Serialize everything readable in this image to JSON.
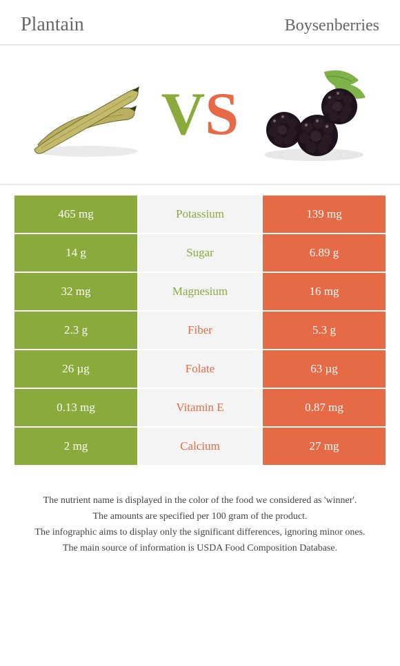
{
  "left_food": "Plantain",
  "right_food": "Boysenberries",
  "colors": {
    "left": "#8aaa3b",
    "right": "#e66a45",
    "mid_bg": "#f4f4f4",
    "plantain_body": "#c3b96a",
    "plantain_dark": "#6a6a2e",
    "berry_body": "#2a1a24",
    "berry_highlight": "#5a3a4a",
    "leaf": "#7fb24a"
  },
  "vs": {
    "v": "V",
    "s": "S"
  },
  "rows": [
    {
      "left": "465 mg",
      "label": "Potassium",
      "right": "139 mg",
      "winner": "left"
    },
    {
      "left": "14 g",
      "label": "Sugar",
      "right": "6.89 g",
      "winner": "left"
    },
    {
      "left": "32 mg",
      "label": "Magnesium",
      "right": "16 mg",
      "winner": "left"
    },
    {
      "left": "2.3 g",
      "label": "Fiber",
      "right": "5.3 g",
      "winner": "right"
    },
    {
      "left": "26 µg",
      "label": "Folate",
      "right": "63 µg",
      "winner": "right"
    },
    {
      "left": "0.13 mg",
      "label": "Vitamin E",
      "right": "0.87 mg",
      "winner": "right"
    },
    {
      "left": "2 mg",
      "label": "Calcium",
      "right": "27 mg",
      "winner": "right"
    }
  ],
  "footnotes": [
    "The nutrient name is displayed in the color of the food we considered as 'winner'.",
    "The amounts are specified per 100 gram of the product.",
    "The infographic aims to display only the significant differences, ignoring minor ones.",
    "The main source of information is USDA Food Composition Database."
  ]
}
